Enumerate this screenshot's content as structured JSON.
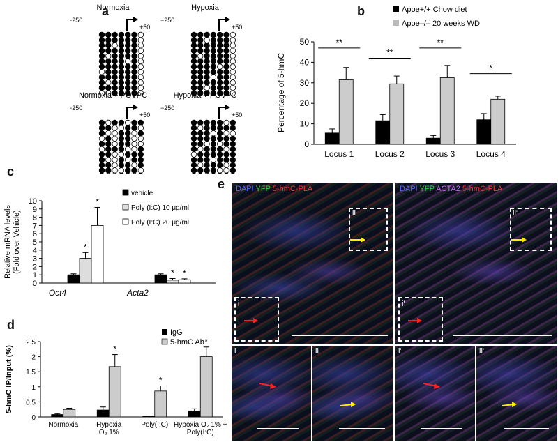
{
  "panel_a": {
    "label": "a",
    "conditions": [
      "Normoxia",
      "Hypoxia",
      "Normoxia + POVPC",
      "Hypoxia + POVPC"
    ],
    "start_label": "−250",
    "end_label": "+50"
  },
  "panel_b": {
    "label": "b",
    "legend": [
      "Apoe+/+ Chow diet",
      "Apoe–/– 20 weeks WD"
    ],
    "ylabel": "Percentage of 5-hmC",
    "sig": [
      "**",
      "**",
      "**",
      "*"
    ]
  },
  "panel_c": {
    "label": "c",
    "legend": [
      "vehicle",
      "Poly (I:C) 10 μg/ml",
      "Poly (I:C) 20 μg/ml"
    ],
    "ylabel": "Relative mRNA levels\n(Fold over Vehicle)",
    "sig": [
      "*",
      "*",
      "*",
      "*"
    ]
  },
  "panel_d": {
    "label": "d",
    "legend": [
      "IgG",
      "5-hmC Ab"
    ],
    "ylabel": "5-hmC IP/Input (%)",
    "sig": [
      "*",
      "*",
      "*"
    ]
  },
  "panel_e": {
    "label": "e",
    "left_title": [
      "DAPI",
      "YFP",
      "5-hmC-PLA"
    ],
    "right_title": [
      "DAPI",
      "YFP",
      "ACTA2",
      "5-hmC-PLA"
    ],
    "roi": [
      "i",
      "ii",
      "i'",
      "ii'"
    ]
  },
  "chart_data": [
    {
      "type": "bar",
      "panel": "b",
      "categories": [
        "Locus 1",
        "Locus 2",
        "Locus 3",
        "Locus 4"
      ],
      "series": [
        {
          "name": "Apoe+/+ Chow diet",
          "values": [
            5.5,
            11.5,
            3,
            12
          ],
          "errors": [
            2,
            3,
            1.3,
            3
          ]
        },
        {
          "name": "Apoe–/– 20 weeks WD",
          "values": [
            31.5,
            29.5,
            32.5,
            22
          ],
          "errors": [
            6,
            3.8,
            6,
            1.5
          ]
        }
      ],
      "ylabel": "Percentage of 5-hmC",
      "ylim": [
        0,
        50
      ],
      "yticks": [
        0,
        10,
        20,
        30,
        40,
        50
      ]
    },
    {
      "type": "bar",
      "panel": "c",
      "categories": [
        "Oct4",
        "Acta2"
      ],
      "series": [
        {
          "name": "vehicle",
          "values": [
            1,
            1
          ],
          "errors": [
            0.12,
            0.12
          ]
        },
        {
          "name": "Poly (I:C) 10 μg/ml",
          "values": [
            3,
            0.35
          ],
          "errors": [
            0.7,
            0.2
          ]
        },
        {
          "name": "Poly (I:C) 20 μg/ml",
          "values": [
            7,
            0.4
          ],
          "errors": [
            2.2,
            0.12
          ]
        }
      ],
      "ylabel": "Relative mRNA levels (Fold over Vehicle)",
      "ylim": [
        0,
        10
      ],
      "yticks": [
        0,
        1,
        2,
        3,
        4,
        5,
        6,
        7,
        8,
        9,
        10
      ]
    },
    {
      "type": "bar",
      "panel": "d",
      "categories": [
        "Normoxia",
        "Hypoxia O2 1%",
        "Poly(I:C)",
        "Hypoxia O2 1% + Poly(I:C)"
      ],
      "series": [
        {
          "name": "IgG",
          "values": [
            0.08,
            0.23,
            0.02,
            0.2
          ],
          "errors": [
            0.03,
            0.1,
            0.01,
            0.07
          ]
        },
        {
          "name": "5-hmC Ab",
          "values": [
            0.25,
            1.67,
            0.86,
            2.0
          ],
          "errors": [
            0.04,
            0.4,
            0.17,
            0.32
          ]
        }
      ],
      "ylabel": "5-hmC IP/Input (%)",
      "ylim": [
        0,
        2.5
      ],
      "yticks": [
        0,
        0.5,
        1,
        1.5,
        2,
        2.5
      ],
      "ytick_labels": [
        "0",
        "0.5",
        "1",
        "1.5",
        "2",
        "2.5"
      ]
    }
  ]
}
